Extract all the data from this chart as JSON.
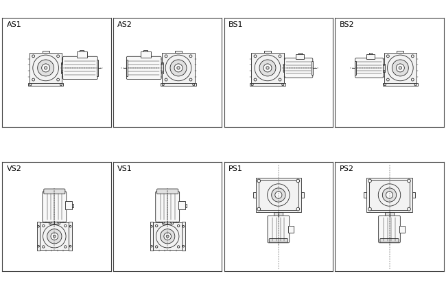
{
  "grid_rows": 2,
  "grid_cols": 4,
  "labels": [
    "AS1",
    "AS2",
    "BS1",
    "BS2",
    "VS2",
    "VS1",
    "PS1",
    "PS2"
  ],
  "bg_color": "#ffffff",
  "line_color": "#2a2a2a",
  "border_color": "#444444",
  "label_fontsize": 8,
  "fig_width": 6.5,
  "fig_height": 4.21,
  "dpi": 100
}
